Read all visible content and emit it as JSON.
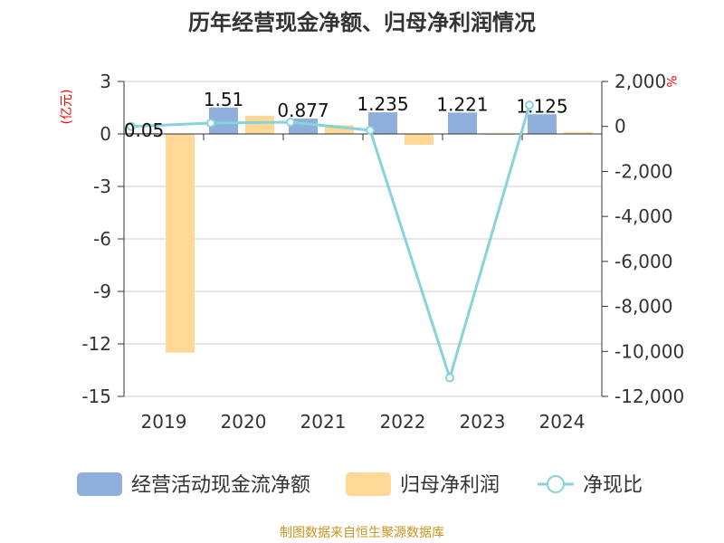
{
  "chart_data": {
    "type": "bar",
    "title": "历年经营现金净额、归母净利润情况",
    "categories": [
      "2019",
      "2020",
      "2021",
      "2022",
      "2023",
      "2024"
    ],
    "series": [
      {
        "name": "经营活动现金流净额",
        "type": "bar",
        "axis": "left",
        "color": "#8eaedc",
        "values": [
          0.05,
          1.51,
          0.877,
          1.235,
          1.221,
          1.125
        ],
        "labels": [
          "0.05",
          "1.51",
          "0.877",
          "1.235",
          "1.221",
          "1.125"
        ]
      },
      {
        "name": "归母净利润",
        "type": "bar",
        "axis": "left",
        "color": "#ffd797",
        "values": [
          -12.5,
          1.04,
          0.5,
          -0.62,
          -0.01,
          0.1
        ]
      },
      {
        "name": "净现比",
        "type": "line",
        "axis": "right",
        "color": "#86d3d9",
        "values": [
          0,
          150,
          190,
          -170,
          -11170,
          950
        ]
      }
    ],
    "ylabel": "(亿元)",
    "y2label": "%",
    "ylim": [
      -15,
      3
    ],
    "yticks": [
      "3",
      "0",
      "-3",
      "-6",
      "-9",
      "-12",
      "-15"
    ],
    "y2lim": [
      -12000,
      2000
    ],
    "y2ticks": [
      "2,000",
      "0",
      "-2,000",
      "-4,000",
      "-6,000",
      "-8,000",
      "-10,000",
      "-12,000"
    ],
    "legend_position": "bottom",
    "grid": true
  },
  "footer": "制图数据来自恒生聚源数据库"
}
